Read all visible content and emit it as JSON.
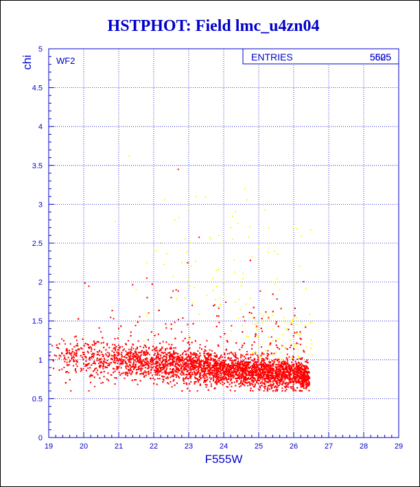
{
  "chart_data": {
    "type": "scatter",
    "title": "HSTPHOT: Field lmc_u4zn04",
    "xlabel": "F555W",
    "ylabel": "chi",
    "xlim": [
      19,
      29
    ],
    "ylim": [
      0,
      5
    ],
    "x_ticks": [
      "19",
      "20",
      "21",
      "22",
      "23",
      "24",
      "25",
      "26",
      "27",
      "28",
      "29"
    ],
    "y_ticks": [
      "0",
      "0.5",
      "1",
      "1.5",
      "2",
      "2.5",
      "3",
      "3.5",
      "4",
      "4.5",
      "5"
    ],
    "grid": true,
    "panel_label": "WF2",
    "stats_box": {
      "label": "ENTRIES",
      "values": [
        "5525",
        "5605"
      ],
      "position": "top-right"
    },
    "colors": {
      "axis": "#0000cc",
      "grid": "#0000cc",
      "main_series": "#ff0000",
      "secondary_series": "#ffff00"
    },
    "series": [
      {
        "color": "#ff0000",
        "points": [
          [
            19.1,
            1.18
          ],
          [
            19.3,
            1.02
          ],
          [
            19.5,
            1.12
          ],
          [
            19.8,
            1.05
          ],
          [
            20.0,
            0.95
          ],
          [
            20.3,
            1.08
          ],
          [
            20.6,
            1.0
          ],
          [
            20.9,
            1.12
          ],
          [
            21.2,
            0.98
          ],
          [
            21.4,
            1.2
          ],
          [
            21.6,
            0.96
          ],
          [
            21.8,
            1.1
          ],
          [
            22.0,
            0.95
          ],
          [
            22.2,
            1.05
          ],
          [
            22.4,
            0.92
          ],
          [
            22.6,
            0.98
          ],
          [
            22.8,
            0.88
          ],
          [
            23.0,
            0.95
          ],
          [
            23.2,
            0.9
          ],
          [
            23.4,
            0.86
          ],
          [
            23.6,
            0.92
          ],
          [
            23.8,
            0.84
          ],
          [
            24.0,
            0.88
          ],
          [
            24.2,
            0.8
          ],
          [
            24.4,
            0.86
          ],
          [
            24.6,
            0.78
          ],
          [
            24.8,
            0.83
          ],
          [
            25.0,
            0.79
          ],
          [
            25.2,
            0.84
          ],
          [
            25.4,
            0.76
          ],
          [
            25.6,
            0.82
          ],
          [
            25.8,
            0.78
          ],
          [
            26.0,
            0.8
          ],
          [
            26.2,
            0.76
          ],
          [
            26.35,
            0.72
          ],
          [
            22.7,
            3.45
          ],
          [
            21.8,
            2.05
          ],
          [
            22.5,
            1.8
          ],
          [
            23.1,
            1.7
          ],
          [
            24.6,
            1.5
          ],
          [
            21.0,
            1.4
          ],
          [
            19.8,
            1.25
          ],
          [
            20.5,
            0.7
          ],
          [
            23.5,
            0.65
          ],
          [
            25.5,
            0.62
          ],
          [
            24.9,
            1.3
          ]
        ],
        "cloud": {
          "count": 5400,
          "x_range": [
            19,
            26.45
          ],
          "y_center": 0.85,
          "y_spread": 0.22,
          "tail_top": 3.45
        }
      },
      {
        "color": "#ffff00",
        "points": [
          [
            21.3,
            3.62
          ],
          [
            20.9,
            2.78
          ],
          [
            23.2,
            3.1
          ],
          [
            24.6,
            3.2
          ],
          [
            22.9,
            2.55
          ],
          [
            25.0,
            2.45
          ],
          [
            21.8,
            2.25
          ],
          [
            23.8,
            2.15
          ],
          [
            24.5,
            1.95
          ],
          [
            25.6,
            1.9
          ],
          [
            25.2,
            1.6
          ],
          [
            25.8,
            1.4
          ],
          [
            26.1,
            1.2
          ],
          [
            25.5,
            1.1
          ],
          [
            25.0,
            1.3
          ],
          [
            22.6,
            2.8
          ],
          [
            24.2,
            2.7
          ],
          [
            21.5,
            1.9
          ],
          [
            26.5,
            1.15
          ],
          [
            25.3,
            1.55
          ]
        ],
        "cloud": {
          "count": 130,
          "x_range": [
            21,
            26.6
          ],
          "y_center": 1.5,
          "y_spread": 0.6,
          "tail_top": 3.6
        }
      }
    ]
  }
}
